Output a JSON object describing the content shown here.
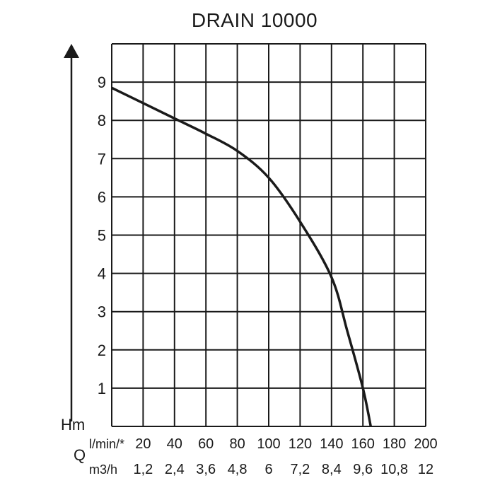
{
  "chart_data": {
    "type": "line",
    "title": "DRAIN 10000",
    "ylabel": "Hm",
    "xlabel": "Q",
    "grid": true,
    "y_ticks": [
      "9",
      "8",
      "7",
      "6",
      "5",
      "4",
      "3",
      "2",
      "1"
    ],
    "y_tick_values": [
      9,
      8,
      7,
      6,
      5,
      4,
      3,
      2,
      1
    ],
    "ylim": [
      0,
      10
    ],
    "xlim": [
      0,
      200
    ],
    "x_axis_lmin": {
      "unit": "l/min/*",
      "ticks": [
        "20",
        "40",
        "60",
        "80",
        "100",
        "120",
        "140",
        "160",
        "180",
        "200"
      ],
      "values": [
        20,
        40,
        60,
        80,
        100,
        120,
        140,
        160,
        180,
        200
      ]
    },
    "x_axis_m3h": {
      "unit": "m3/h",
      "ticks": [
        "1,2",
        "2,4",
        "3,6",
        "4,8",
        "6",
        "7,2",
        "8,4",
        "9,6",
        "10,8",
        "12"
      ]
    },
    "series": [
      {
        "x": [
          0,
          20,
          40,
          60,
          80,
          100,
          120,
          140,
          150,
          160,
          165
        ],
        "y": [
          8.85,
          8.45,
          8.05,
          7.65,
          7.2,
          6.5,
          5.35,
          3.9,
          2.5,
          1.0,
          0
        ]
      }
    ]
  }
}
